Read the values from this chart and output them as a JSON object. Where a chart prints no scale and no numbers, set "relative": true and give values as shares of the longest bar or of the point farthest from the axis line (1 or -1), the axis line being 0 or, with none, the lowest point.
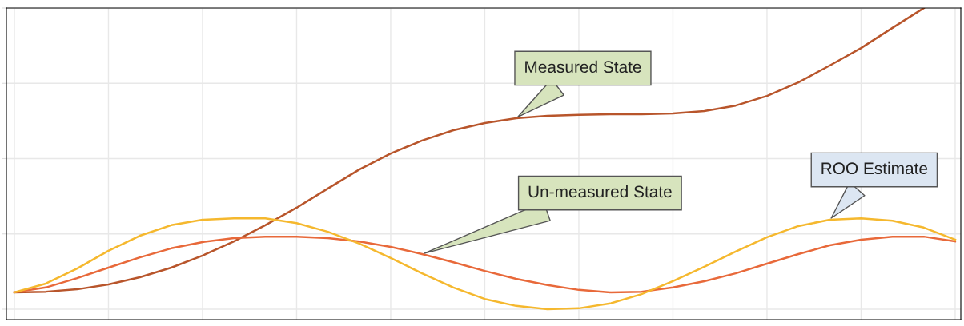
{
  "chart_data": {
    "type": "line",
    "relative": true,
    "grid": true,
    "legend": false,
    "marker": "none",
    "line_style": "solid",
    "categories": [
      null,
      null,
      null,
      null,
      null,
      null,
      null,
      null,
      null,
      null,
      null,
      null,
      null,
      null,
      null,
      null,
      null,
      null,
      null,
      null,
      null,
      null,
      null,
      null,
      null,
      null,
      null,
      null,
      null,
      null,
      null
    ],
    "series": [
      {
        "name": "Measured State",
        "color": "#b8552b",
        "values": [
          0.056,
          0.058,
          0.066,
          0.082,
          0.106,
          0.138,
          0.178,
          0.225,
          0.279,
          0.337,
          0.401,
          0.464,
          0.517,
          0.56,
          0.594,
          0.618,
          0.634,
          0.642,
          0.645,
          0.647,
          0.647,
          0.65,
          0.658,
          0.676,
          0.708,
          0.753,
          0.809,
          0.867,
          0.934,
          1.0,
          null
        ]
      },
      {
        "name": "Un-measured State",
        "color": "#e8693a",
        "values": [
          0.056,
          0.072,
          0.103,
          0.138,
          0.172,
          0.202,
          0.223,
          0.236,
          0.241,
          0.241,
          0.236,
          0.225,
          0.207,
          0.183,
          0.156,
          0.127,
          0.101,
          0.08,
          0.064,
          0.056,
          0.058,
          0.072,
          0.093,
          0.119,
          0.151,
          0.183,
          0.212,
          0.231,
          0.241,
          0.241,
          0.225
        ]
      },
      {
        "name": "ROO Estimate",
        "color": "#f5b82e",
        "values": [
          0.056,
          0.085,
          0.135,
          0.194,
          0.244,
          0.279,
          0.297,
          0.302,
          0.302,
          0.286,
          0.257,
          0.218,
          0.17,
          0.119,
          0.072,
          0.034,
          0.011,
          0.0,
          0.003,
          0.019,
          0.05,
          0.093,
          0.141,
          0.191,
          0.239,
          0.276,
          0.297,
          0.302,
          0.294,
          0.271,
          0.231
        ]
      }
    ]
  }
}
